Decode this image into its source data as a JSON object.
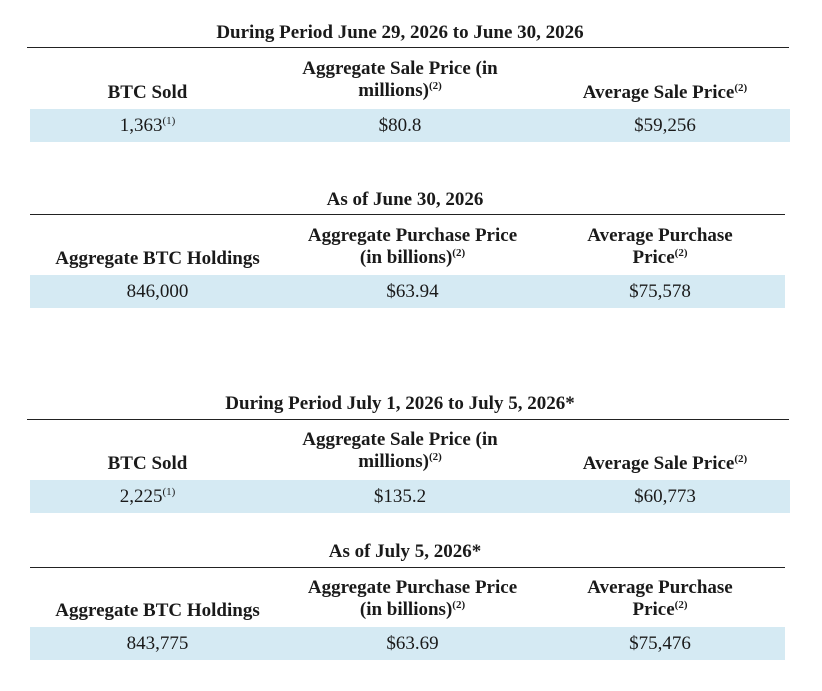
{
  "colors": {
    "band": "#d5eaf3",
    "rule": "#222222",
    "text": "#1a1a1a"
  },
  "sections": [
    {
      "title": "During Period June 29, 2026 to June 30, 2026",
      "col1": {
        "label": "BTC Sold",
        "sup": ""
      },
      "col2": {
        "line1": "Aggregate Sale Price (in",
        "line2": "millions)",
        "sup": "(2)"
      },
      "col3": {
        "label": "Average Sale Price",
        "sup": "(2)"
      },
      "row": {
        "v1": "1,363",
        "v1_sup": "(1)",
        "v2": "$80.8",
        "v3": "$59,256"
      }
    },
    {
      "title": "As of June 30, 2026",
      "col1": {
        "label": "Aggregate BTC Holdings",
        "sup": ""
      },
      "col2": {
        "line1": "Aggregate Purchase Price",
        "line2": "(in billions)",
        "sup": "(2)"
      },
      "col3": {
        "line1": "Average Purchase",
        "line2": "Price",
        "sup": "(2)"
      },
      "row": {
        "v1": "846,000",
        "v1_sup": "",
        "v2": "$63.94",
        "v3": "$75,578"
      }
    },
    {
      "title": "During Period July 1, 2026 to July 5, 2026*",
      "col1": {
        "label": "BTC Sold",
        "sup": ""
      },
      "col2": {
        "line1": "Aggregate Sale Price (in",
        "line2": "millions)",
        "sup": "(2)"
      },
      "col3": {
        "label": "Average Sale Price",
        "sup": "(2)"
      },
      "row": {
        "v1": "2,225",
        "v1_sup": "(1)",
        "v2": "$135.2",
        "v3": "$60,773"
      }
    },
    {
      "title": "As of July 5, 2026*",
      "col1": {
        "label": "Aggregate BTC Holdings",
        "sup": ""
      },
      "col2": {
        "line1": "Aggregate Purchase Price",
        "line2": "(in billions)",
        "sup": "(2)"
      },
      "col3": {
        "line1": "Average Purchase",
        "line2": "Price",
        "sup": "(2)"
      },
      "row": {
        "v1": "843,775",
        "v1_sup": "",
        "v2": "$63.69",
        "v3": "$75,476"
      }
    }
  ]
}
